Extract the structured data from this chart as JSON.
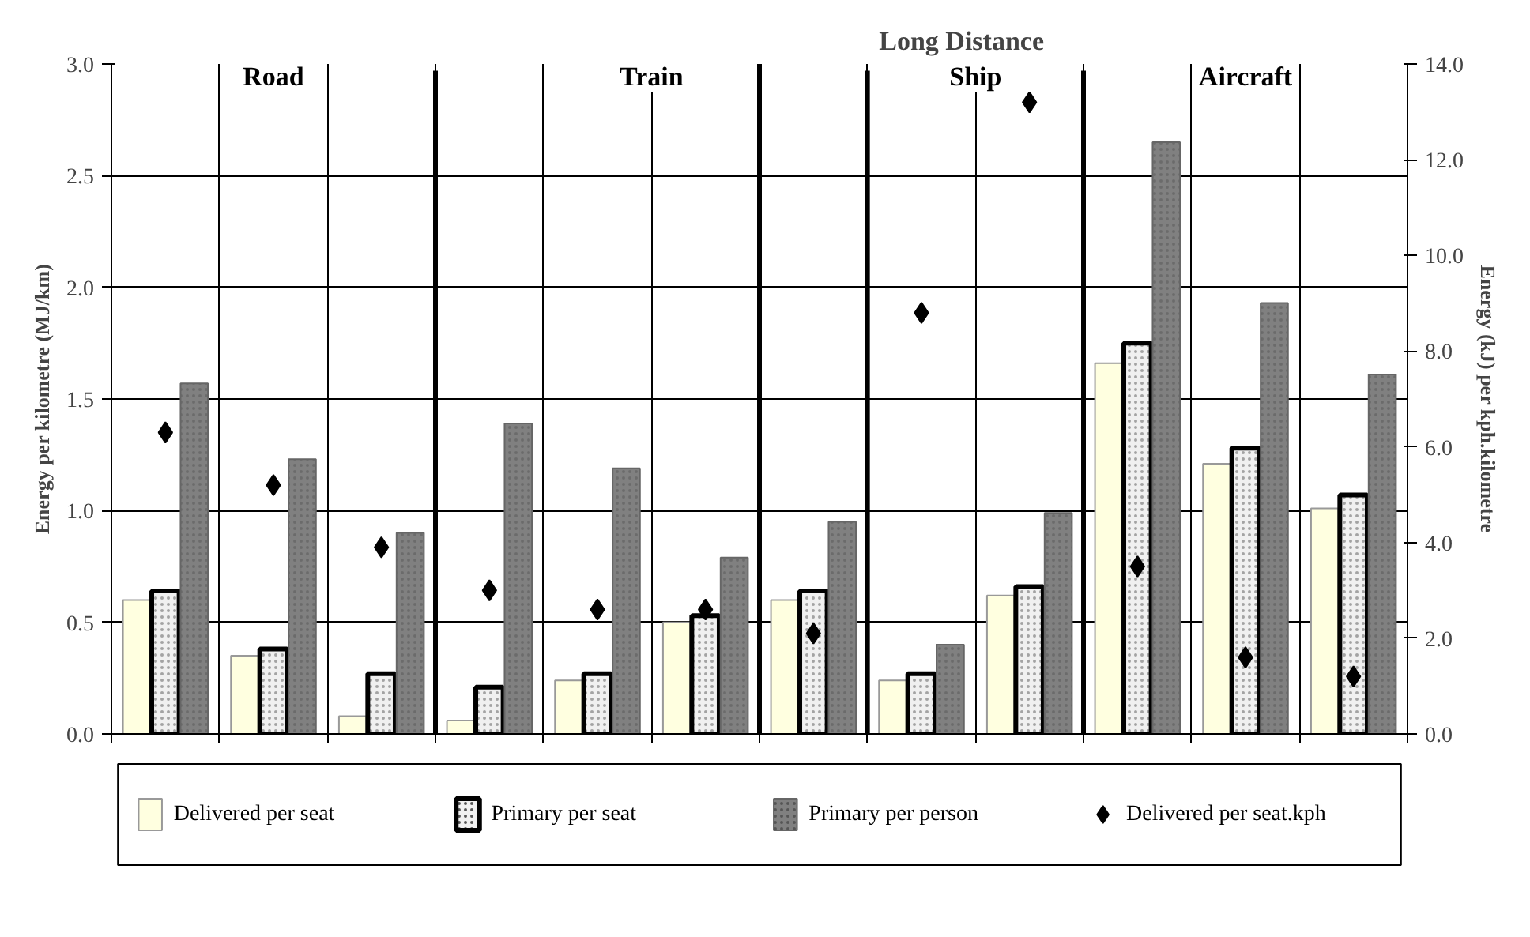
{
  "chart_data": {
    "type": "bar",
    "categories": [
      null,
      null,
      null,
      null,
      null,
      null,
      null,
      null,
      null,
      null,
      null,
      null
    ],
    "ylabel": "Energy per kilometre (MJ/km)",
    "y2label": "Energy (kJ) per kph.kilometre",
    "annotations": [
      "Road",
      "Train",
      "Ship",
      "Aircraft",
      "Long Distance"
    ],
    "ylim": [
      0,
      3.0
    ],
    "yticks": [
      {
        "value": 0,
        "label": "0.0"
      },
      {
        "value": 0.5,
        "label": "0.5"
      },
      {
        "value": 1.0,
        "label": "1.0"
      },
      {
        "value": 1.5,
        "label": "1.5"
      },
      {
        "value": 2.0,
        "label": "2.0"
      },
      {
        "value": 2.5,
        "label": "2.5"
      },
      {
        "value": 3.0,
        "label": "3.0"
      }
    ],
    "y2lim": [
      0,
      14.0
    ],
    "y2ticks": [
      {
        "value": 0,
        "label": "0.0"
      },
      {
        "value": 2,
        "label": "2.0"
      },
      {
        "value": 4,
        "label": "4.0"
      },
      {
        "value": 6,
        "label": "6.0"
      },
      {
        "value": 8,
        "label": "8.0"
      },
      {
        "value": 10,
        "label": "10.0"
      },
      {
        "value": 12,
        "label": "12.0"
      },
      {
        "value": 14,
        "label": "14.0"
      }
    ],
    "grid": true,
    "legend": "bottom",
    "series": [
      {
        "name": "Delivered per seat",
        "color": "#ffffe0",
        "values": [
          0.6,
          0.35,
          0.08,
          0.06,
          0.24,
          0.5,
          0.6,
          0.24,
          0.62,
          1.66,
          1.21,
          1.01
        ]
      },
      {
        "name": "Primary per seat",
        "color": "#f0f0f0",
        "values": [
          0.64,
          0.38,
          0.27,
          0.21,
          0.27,
          0.53,
          0.64,
          0.27,
          0.66,
          1.75,
          1.28,
          1.07
        ]
      },
      {
        "name": "Primary per person",
        "color": "#808080",
        "values": [
          1.57,
          1.23,
          0.9,
          1.39,
          1.19,
          0.79,
          0.95,
          0.4,
          0.99,
          2.65,
          1.93,
          1.61
        ]
      },
      {
        "name": "Delivered per seat.kph",
        "type": "scatter",
        "axis": "y2",
        "marker": "diamond",
        "color": "#000000",
        "values": [
          6.3,
          5.2,
          3.9,
          3.0,
          2.6,
          2.6,
          2.1,
          8.8,
          13.2,
          3.5,
          1.6,
          1.2
        ]
      }
    ]
  }
}
